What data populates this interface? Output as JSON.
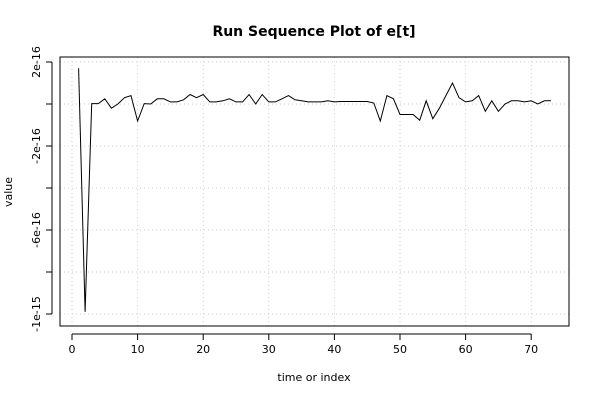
{
  "chart_data": {
    "type": "line",
    "title": "Run Sequence Plot of e[t]",
    "xlabel": "time or index",
    "ylabel": "value",
    "xlim": [
      0,
      73
    ],
    "ylim": [
      -1e-15,
      2e-16
    ],
    "x_ticks": [
      0,
      10,
      20,
      30,
      40,
      50,
      60,
      70
    ],
    "x_tick_labels": [
      "0",
      "10",
      "20",
      "30",
      "40",
      "50",
      "60",
      "70"
    ],
    "y_ticks": [
      -1e-15,
      -6e-16,
      -2e-16,
      2e-16
    ],
    "y_tick_labels": [
      "-1e-15",
      "-6e-16",
      "-2e-16",
      "2e-16"
    ],
    "y_grid_ticks": [
      -1e-15,
      -8e-16,
      -6e-16,
      -4e-16,
      -2e-16,
      0,
      2e-16
    ],
    "grid": true,
    "series": [
      {
        "x": [
          1,
          2,
          3,
          4,
          5,
          6,
          7,
          8,
          9,
          10,
          11,
          12,
          13,
          14,
          15,
          16,
          17,
          18,
          19,
          20,
          21,
          22,
          23,
          24,
          25,
          26,
          27,
          28,
          29,
          30,
          31,
          32,
          33,
          34,
          35,
          36,
          37,
          38,
          39,
          40,
          41,
          42,
          43,
          44,
          45,
          46,
          47,
          48,
          49,
          50,
          51,
          52,
          53,
          54,
          55,
          56,
          57,
          58,
          59,
          60,
          61,
          62,
          63,
          64,
          65,
          66,
          67,
          68,
          69,
          70,
          71,
          72,
          73
        ],
        "values": [
          1.7e-16,
          -9.9e-16,
          2e-18,
          2e-18,
          2.5e-17,
          -2e-17,
          0,
          3e-17,
          4e-17,
          -8.1e-17,
          2e-18,
          0,
          2.5e-17,
          2.5e-17,
          1e-17,
          1e-17,
          2e-17,
          4.5e-17,
          3e-17,
          4.5e-17,
          1e-17,
          1e-17,
          1.5e-17,
          2.5e-17,
          1e-17,
          1e-17,
          4.5e-17,
          0,
          4.5e-17,
          1e-17,
          1e-17,
          2.5e-17,
          4e-17,
          2e-17,
          1.5e-17,
          1e-17,
          1e-17,
          1e-17,
          1.5e-17,
          1e-17,
          1.2e-17,
          1.2e-17,
          1.2e-17,
          1.2e-17,
          1.2e-17,
          5e-18,
          -8.1e-17,
          4e-17,
          2.5e-17,
          -5e-17,
          -5e-17,
          -5e-17,
          -7.7e-17,
          1.5e-17,
          -7e-17,
          -2e-17,
          4e-17,
          1e-16,
          3e-17,
          1e-17,
          1.5e-17,
          4e-17,
          -3.5e-17,
          1.5e-17,
          -3.5e-17,
          0,
          1.5e-17,
          1.5e-17,
          1e-17,
          1.5e-17,
          0,
          1.5e-17,
          1.5e-17
        ]
      }
    ]
  }
}
